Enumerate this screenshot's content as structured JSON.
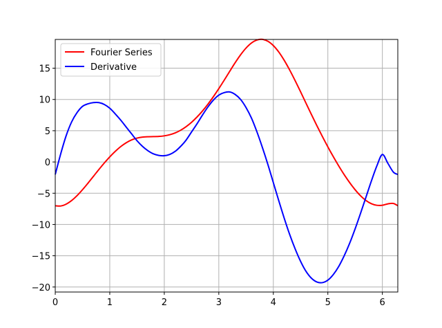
{
  "chart_data": {
    "type": "line",
    "title": "",
    "xlabel": "",
    "ylabel": "",
    "xlim": [
      0,
      6.283
    ],
    "ylim": [
      -20.8,
      19.6
    ],
    "xticks": [
      0,
      1,
      2,
      3,
      4,
      5,
      6
    ],
    "yticks": [
      -20,
      -15,
      -10,
      -5,
      0,
      5,
      10,
      15
    ],
    "grid": true,
    "legend": {
      "position": "top-left"
    },
    "series": [
      {
        "name": "Fourier Series",
        "color": "#ff0000",
        "x": [
          0,
          0.1,
          0.2,
          0.3,
          0.4,
          0.5,
          0.6,
          0.7,
          0.8,
          0.9,
          1.0,
          1.1,
          1.2,
          1.3,
          1.4,
          1.5,
          1.6,
          1.7,
          1.8,
          1.9,
          2.0,
          2.1,
          2.2,
          2.3,
          2.4,
          2.5,
          2.6,
          2.7,
          2.8,
          2.9,
          3.0,
          3.1,
          3.2,
          3.3,
          3.4,
          3.5,
          3.6,
          3.7,
          3.8,
          3.9,
          4.0,
          4.1,
          4.2,
          4.3,
          4.4,
          4.5,
          4.6,
          4.7,
          4.8,
          4.9,
          5.0,
          5.1,
          5.2,
          5.3,
          5.4,
          5.5,
          5.6,
          5.7,
          5.8,
          5.9,
          6.0,
          6.1,
          6.2,
          6.283
        ],
        "values": [
          -7.0,
          -7.04,
          -6.74,
          -6.17,
          -5.38,
          -4.43,
          -3.39,
          -2.3,
          -1.21,
          -0.16,
          0.82,
          1.7,
          2.46,
          3.07,
          3.53,
          3.82,
          3.98,
          4.04,
          4.06,
          4.09,
          4.18,
          4.36,
          4.65,
          5.08,
          5.65,
          6.35,
          7.19,
          8.15,
          9.24,
          10.44,
          11.73,
          13.1,
          14.5,
          15.88,
          17.15,
          18.23,
          19.04,
          19.51,
          19.61,
          19.31,
          18.62,
          17.59,
          16.26,
          14.71,
          13.01,
          11.22,
          9.39,
          7.57,
          5.79,
          4.07,
          2.42,
          0.85,
          -0.64,
          -2.03,
          -3.3,
          -4.44,
          -5.41,
          -6.17,
          -6.68,
          -6.93,
          -6.92,
          -6.7,
          -6.63,
          -7.0
        ]
      },
      {
        "name": "Derivative",
        "color": "#0000ff",
        "x": [
          0,
          0.1,
          0.2,
          0.3,
          0.4,
          0.5,
          0.6,
          0.7,
          0.8,
          0.9,
          1.0,
          1.1,
          1.2,
          1.3,
          1.4,
          1.5,
          1.6,
          1.7,
          1.8,
          1.9,
          2.0,
          2.1,
          2.2,
          2.3,
          2.4,
          2.5,
          2.6,
          2.7,
          2.8,
          2.9,
          3.0,
          3.1,
          3.2,
          3.3,
          3.4,
          3.5,
          3.6,
          3.7,
          3.8,
          3.9,
          4.0,
          4.1,
          4.2,
          4.3,
          4.4,
          4.5,
          4.6,
          4.7,
          4.8,
          4.9,
          5.0,
          5.1,
          5.2,
          5.3,
          5.4,
          5.5,
          5.6,
          5.7,
          5.8,
          5.9,
          6.0,
          6.1,
          6.2,
          6.283
        ],
        "values": [
          -2.0,
          1.3,
          4.2,
          6.4,
          7.9,
          8.9,
          9.3,
          9.5,
          9.5,
          9.2,
          8.6,
          7.7,
          6.7,
          5.6,
          4.5,
          3.4,
          2.5,
          1.8,
          1.3,
          1.05,
          1.0,
          1.2,
          1.7,
          2.5,
          3.5,
          4.8,
          6.1,
          7.5,
          8.8,
          9.9,
          10.7,
          11.1,
          11.2,
          10.8,
          10.0,
          8.7,
          7.0,
          4.8,
          2.3,
          -0.4,
          -3.3,
          -6.2,
          -9.0,
          -11.6,
          -13.9,
          -15.9,
          -17.5,
          -18.6,
          -19.2,
          -19.3,
          -18.9,
          -18.0,
          -16.7,
          -15.0,
          -13.0,
          -10.7,
          -8.2,
          -5.6,
          -3.0,
          -0.6,
          1.2,
          -0.2,
          -1.6,
          -2.0
        ]
      }
    ]
  }
}
